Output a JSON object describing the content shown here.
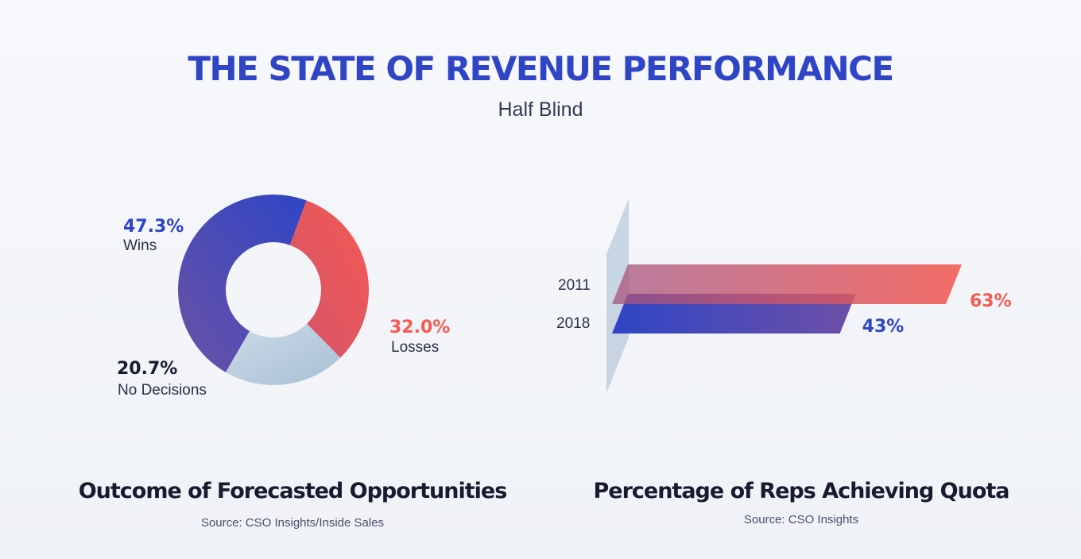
{
  "header": {
    "title": "THE STATE OF REVENUE PERFORMANCE",
    "subtitle": "Half Blind"
  },
  "colors": {
    "blue": "#2f45c5",
    "purple": "#6a51a8",
    "red": "#f45a52",
    "light": "#a9c1d7",
    "dark": "#171b2e"
  },
  "chart_data": [
    {
      "type": "pie",
      "variant": "donut",
      "title": "Outcome of Forecasted Opportunities",
      "source": "Source: CSO Insights/Inside Sales",
      "slices": [
        {
          "label": "Wins",
          "value": 47.3,
          "display": "47.3%"
        },
        {
          "label": "Losses",
          "value": 32.0,
          "display": "32.0%"
        },
        {
          "label": "No Decisions",
          "value": 20.7,
          "display": "20.7%"
        }
      ]
    },
    {
      "type": "bar",
      "orientation": "horizontal",
      "title": "Percentage of Reps Achieving Quota",
      "source": "Source: CSO Insights",
      "categories": [
        "2011",
        "2018"
      ],
      "values": [
        63,
        43
      ],
      "labels": [
        "63%",
        "43%"
      ],
      "xlim": [
        0,
        100
      ]
    }
  ]
}
